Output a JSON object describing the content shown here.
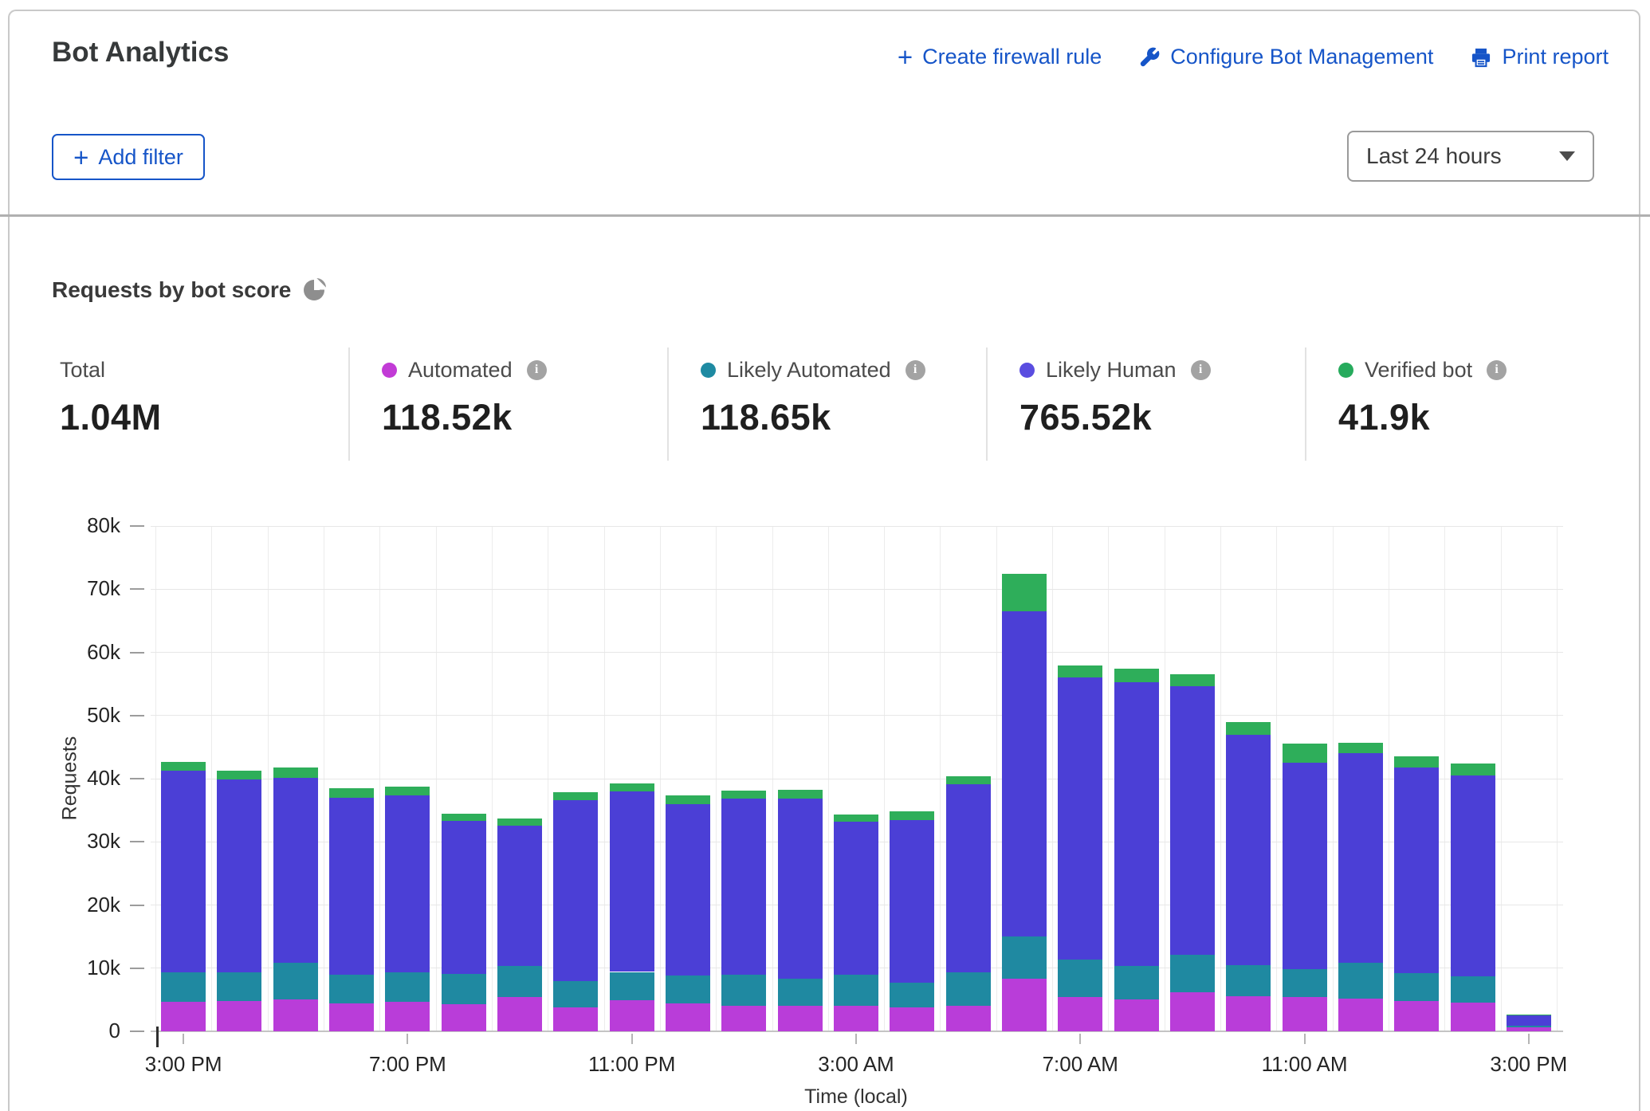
{
  "header": {
    "title": "Bot Analytics",
    "actions": [
      {
        "label": "Create firewall rule",
        "icon": "plus-icon"
      },
      {
        "label": "Configure Bot Management",
        "icon": "wrench-icon"
      },
      {
        "label": "Print report",
        "icon": "printer-icon"
      }
    ],
    "add_filter_label": "Add filter",
    "time_range_selected": "Last 24 hours",
    "link_color": "#1655c8"
  },
  "section": {
    "title": "Requests by bot score"
  },
  "stats": {
    "total": {
      "label": "Total",
      "value": "1.04M"
    },
    "series": [
      {
        "label": "Automated",
        "value": "118.52k",
        "color": "#c23bd6"
      },
      {
        "label": "Likely Automated",
        "value": "118.65k",
        "color": "#1e8aa2"
      },
      {
        "label": "Likely Human",
        "value": "765.52k",
        "color": "#5a4de0"
      },
      {
        "label": "Verified bot",
        "value": "41.9k",
        "color": "#27ab5d"
      }
    ]
  },
  "chart_data": {
    "type": "bar",
    "stacked": true,
    "title": "Requests by bot score",
    "xlabel": "Time (local)",
    "ylabel": "Requests",
    "unit": "thousands of requests",
    "ylim_k": [
      0,
      80
    ],
    "ytick_labels": [
      "0",
      "10k",
      "20k",
      "30k",
      "40k",
      "50k",
      "60k",
      "70k",
      "80k"
    ],
    "xtick_labels": [
      "3:00 PM",
      "7:00 PM",
      "11:00 PM",
      "3:00 AM",
      "7:00 AM",
      "11:00 AM",
      "3:00 PM"
    ],
    "xtick_bar_indices": [
      0,
      4,
      8,
      12,
      16,
      20,
      24
    ],
    "grid": true,
    "legend_position": "top",
    "series": [
      {
        "name": "Automated",
        "color": "#b93dd9",
        "values_k": [
          4.7,
          4.8,
          5.0,
          4.4,
          4.7,
          4.3,
          5.4,
          3.8,
          4.9,
          4.4,
          4.0,
          4.0,
          4.0,
          3.8,
          4.0,
          8.3,
          5.4,
          5.0,
          6.2,
          5.6,
          5.4,
          5.2,
          4.8,
          4.6,
          0.6
        ]
      },
      {
        "name": "Likely Automated",
        "color": "#1f89a1",
        "values_k": [
          4.6,
          4.5,
          5.9,
          4.6,
          4.6,
          4.8,
          5.0,
          4.1,
          4.5,
          4.4,
          5.0,
          4.3,
          4.9,
          3.9,
          5.3,
          6.7,
          5.9,
          5.3,
          5.9,
          4.9,
          4.5,
          5.7,
          4.4,
          4.1,
          0.3
        ]
      },
      {
        "name": "Likely Human",
        "color": "#4b3fd6",
        "values_k": [
          31.9,
          30.6,
          29.2,
          28.0,
          28.0,
          24.2,
          22.1,
          28.7,
          28.6,
          27.2,
          27.9,
          28.5,
          24.3,
          25.8,
          29.8,
          51.5,
          44.7,
          45.0,
          42.5,
          36.4,
          32.6,
          33.1,
          32.6,
          31.8,
          1.6
        ]
      },
      {
        "name": "Verified bot",
        "color": "#2eae5a",
        "values_k": [
          1.4,
          1.3,
          1.7,
          1.5,
          1.5,
          1.2,
          1.2,
          1.2,
          1.2,
          1.3,
          1.2,
          1.4,
          1.1,
          1.3,
          1.3,
          5.9,
          1.9,
          2.1,
          1.9,
          2.1,
          3.0,
          1.7,
          1.7,
          1.9,
          0.1
        ]
      }
    ]
  }
}
